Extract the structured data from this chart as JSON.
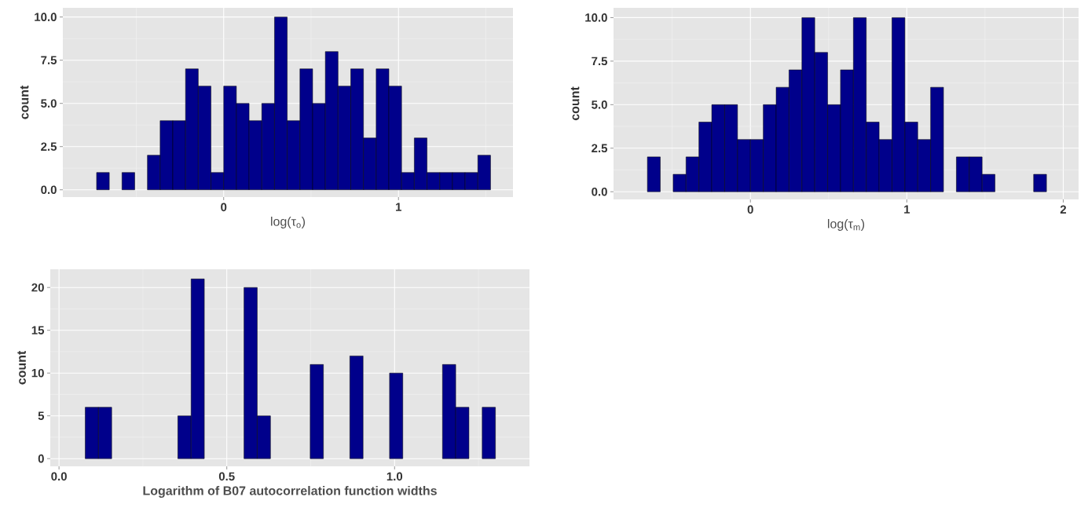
{
  "chart_data": [
    {
      "type": "histogram",
      "xlabel": "log(τ$_{o}$)",
      "ylabel": "count",
      "color": "#00008b",
      "grid": true,
      "bins": [
        -0.7997,
        -0.727,
        -0.6543,
        -0.5816,
        -0.5089,
        -0.4362,
        -0.3635,
        -0.2908,
        -0.2181,
        -0.1454,
        -0.0727,
        0,
        0.0727,
        0.1454,
        0.2181,
        0.2908,
        0.3635,
        0.4362,
        0.5089,
        0.5816,
        0.6543,
        0.727,
        0.7997,
        0.8724,
        0.9451,
        1.0178,
        1.0905,
        1.1632,
        1.2359,
        1.3086,
        1.3813,
        1.454,
        1.5267,
        1.5994
      ],
      "values": [
        0,
        1,
        0,
        1,
        0,
        2,
        4,
        4,
        7,
        6,
        1,
        6,
        5,
        4,
        5,
        10,
        4,
        7,
        5,
        8,
        6,
        7,
        3,
        7,
        6,
        1,
        3,
        1,
        1,
        1,
        1,
        2,
        0
      ],
      "xlim": [
        -0.92,
        1.655
      ],
      "ylim": [
        -0.42,
        10.53
      ],
      "xticks": [
        0,
        1
      ],
      "yticks": [
        {
          "value": 0,
          "label": "0.0"
        },
        2.5,
        {
          "value": 5,
          "label": "5.0"
        },
        7.5,
        {
          "value": 10,
          "label": "10.0"
        }
      ]
    },
    {
      "type": "histogram",
      "xlabel": "log(τ$_{m}$)",
      "ylabel": "count",
      "color": "#00008b",
      "grid": true,
      "bins": [
        -0.7407,
        -0.6584,
        -0.5761,
        -0.4938,
        -0.4115,
        -0.3292,
        -0.2469,
        -0.1646,
        -0.0823,
        0,
        0.0823,
        0.1646,
        0.2469,
        0.3292,
        0.4115,
        0.4938,
        0.5761,
        0.6584,
        0.7407,
        0.823,
        0.9053,
        0.9876,
        1.0699,
        1.1522,
        1.2345,
        1.3168,
        1.3991,
        1.4814,
        1.5637,
        1.646,
        1.7283,
        1.8106,
        1.8929,
        1.9752
      ],
      "values": [
        0,
        2,
        0,
        1,
        2,
        4,
        5,
        5,
        3,
        3,
        5,
        6,
        7,
        10,
        8,
        5,
        7,
        10,
        4,
        3,
        10,
        4,
        3,
        6,
        0,
        2,
        2,
        1,
        0,
        0,
        0,
        1,
        0
      ],
      "xlim": [
        -0.875,
        2.098
      ],
      "ylim": [
        -0.44,
        10.56
      ],
      "xticks": [
        0,
        1,
        2
      ],
      "yticks": [
        {
          "value": 0,
          "label": "0.0"
        },
        2.5,
        {
          "value": 5,
          "label": "5.0"
        },
        7.5,
        {
          "value": 10,
          "label": "10.0"
        }
      ]
    },
    {
      "type": "histogram",
      "xlabel": "Logarithm of B07 autocorrelation function widths",
      "ylabel": "count",
      "color": "#00008b",
      "grid": true,
      "bins": [
        0.0387,
        0.0781,
        0.1176,
        0.157,
        0.1964,
        0.2359,
        0.2753,
        0.3147,
        0.3541,
        0.3936,
        0.433,
        0.4724,
        0.5119,
        0.5513,
        0.5907,
        0.6302,
        0.6696,
        0.709,
        0.7485,
        0.7879,
        0.8273,
        0.8667,
        0.9062,
        0.9456,
        0.985,
        1.0245,
        1.0639,
        1.1033,
        1.1428,
        1.1822,
        1.2216,
        1.2611,
        1.3005,
        1.3399
      ],
      "values": [
        0,
        6,
        6,
        0,
        0,
        0,
        0,
        0,
        5,
        21,
        0,
        0,
        0,
        20,
        5,
        0,
        0,
        0,
        11,
        0,
        0,
        12,
        0,
        0,
        10,
        0,
        0,
        0,
        11,
        6,
        0,
        6,
        0
      ],
      "xlim": [
        -0.026,
        1.402
      ],
      "ylim": [
        -0.9,
        22.13
      ],
      "xticks": [
        {
          "value": 0,
          "label": "0.0"
        },
        0.5,
        {
          "value": 1,
          "label": "1.0"
        }
      ],
      "yticks": [
        0,
        5,
        10,
        15,
        20
      ]
    }
  ]
}
